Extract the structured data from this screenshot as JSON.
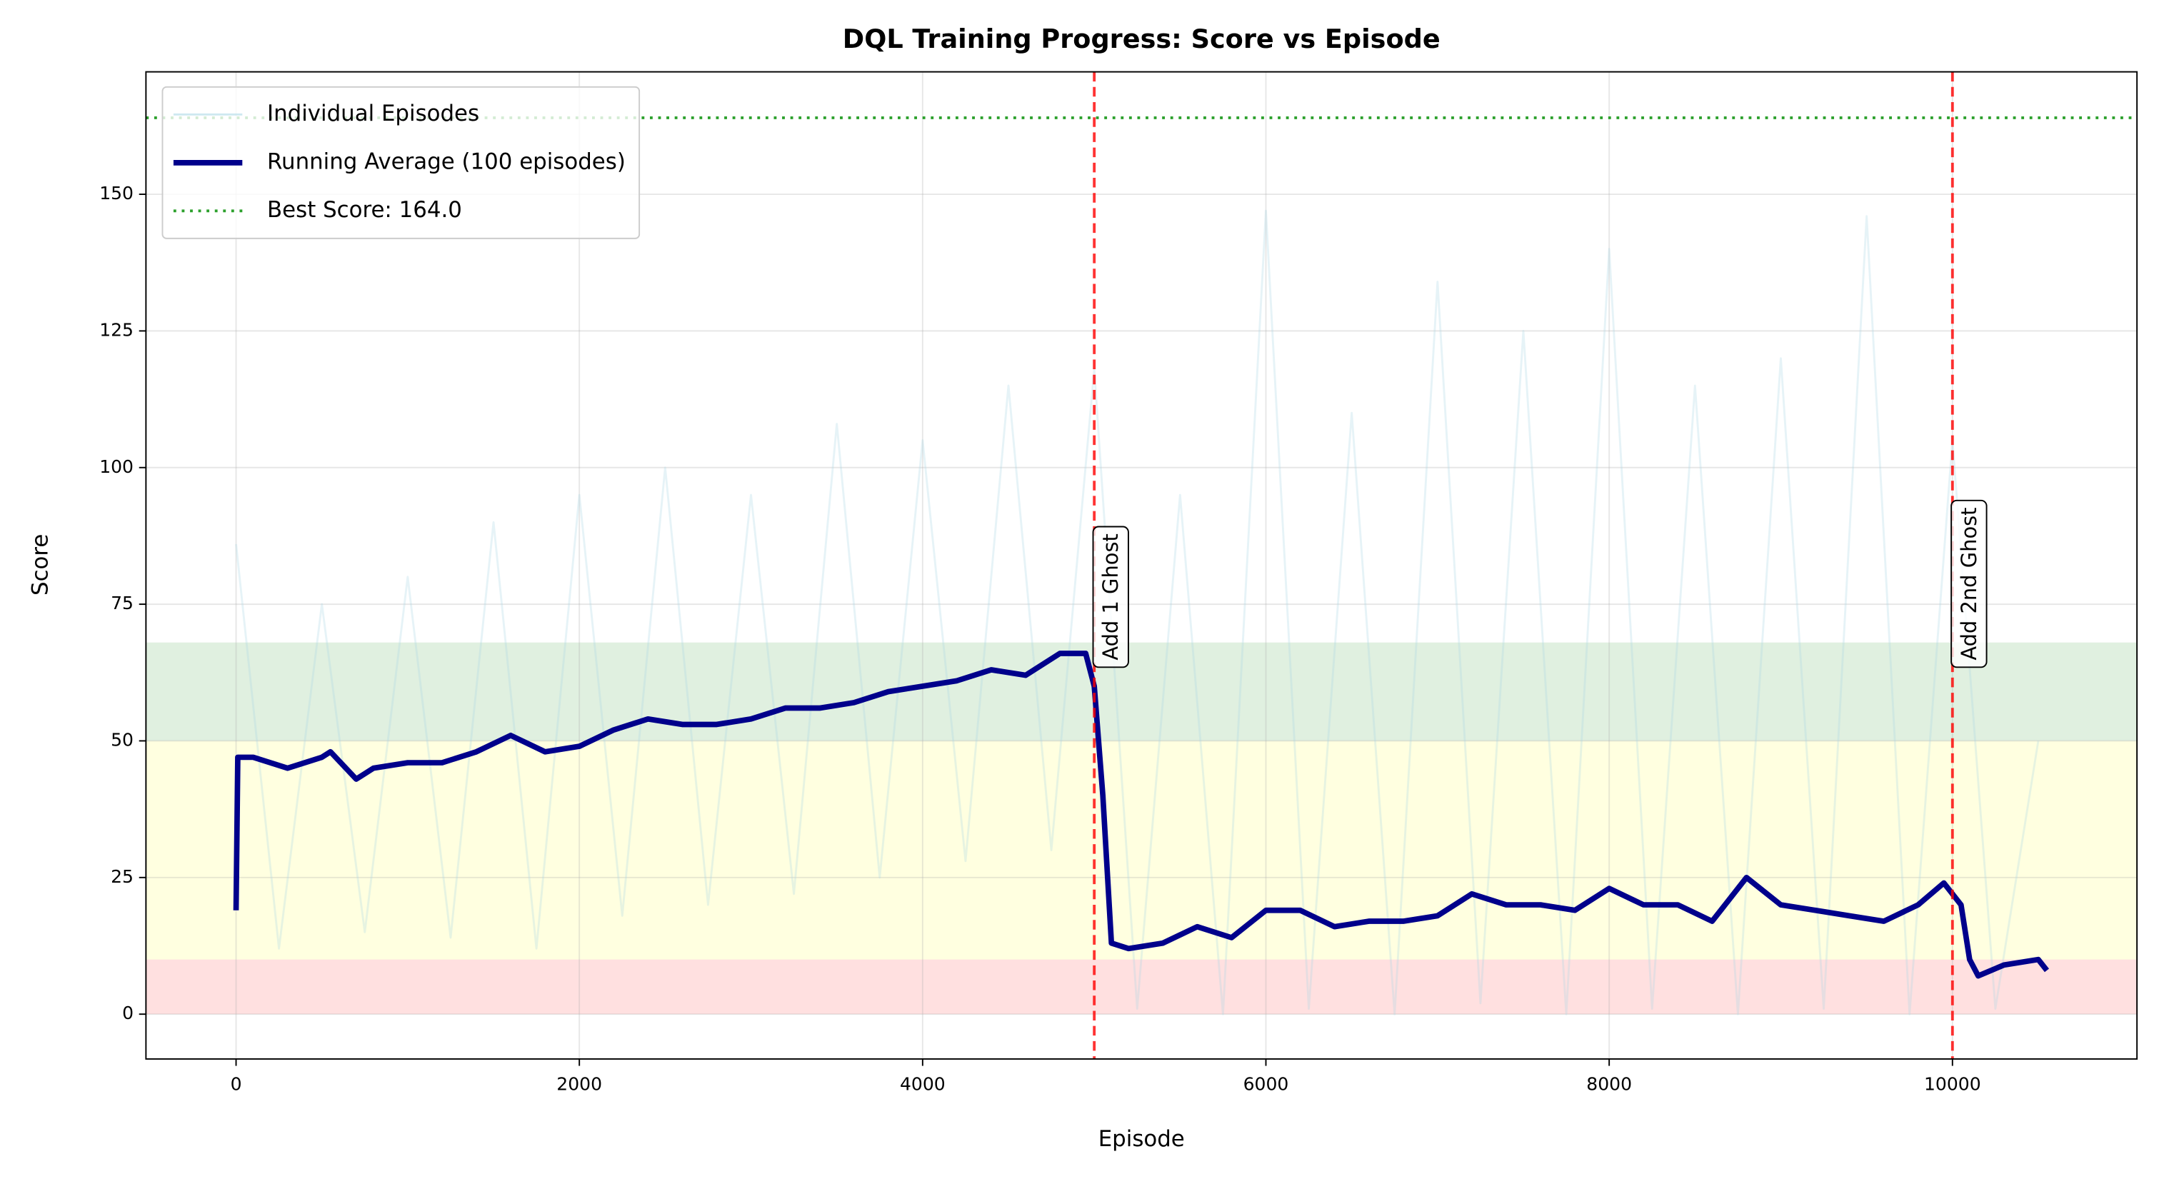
{
  "chart_data": {
    "type": "line",
    "title": "DQL Training Progress: Score vs Episode",
    "x_label": "Episode",
    "y_label": "Score",
    "xlim": [
      -525,
      11075
    ],
    "ylim": [
      -8.2,
      172.4
    ],
    "xticks": [
      0,
      2000,
      4000,
      6000,
      8000,
      10000
    ],
    "yticks": [
      0,
      25,
      50,
      75,
      100,
      125,
      150
    ],
    "grid": true,
    "legend": "upper left",
    "bands": [
      {
        "range": [
          0,
          10
        ],
        "color": "#ff0000"
      },
      {
        "range": [
          10,
          50
        ],
        "color": "#ffff00"
      },
      {
        "range": [
          50,
          68
        ],
        "color": "#008000"
      }
    ],
    "series": [
      {
        "name": "Individual Episodes",
        "color": "#add8e6",
        "style": "solid",
        "width": 1.5,
        "opacity": 0.3,
        "x": [
          0,
          250,
          500,
          750,
          1000,
          1250,
          1500,
          1750,
          2000,
          2250,
          2500,
          2750,
          3000,
          3250,
          3500,
          3750,
          4000,
          4250,
          4500,
          4750,
          5000,
          5250,
          5500,
          5750,
          6000,
          6250,
          6500,
          6750,
          7000,
          7250,
          7500,
          7750,
          8000,
          8250,
          8500,
          8750,
          9000,
          9250,
          9500,
          9750,
          10000,
          10250,
          10500
        ],
        "values": [
          86,
          12,
          75,
          15,
          80,
          14,
          90,
          12,
          95,
          18,
          100,
          20,
          95,
          22,
          108,
          25,
          105,
          28,
          115,
          30,
          118,
          1,
          95,
          0,
          147,
          1,
          110,
          0,
          134,
          2,
          125,
          0,
          140,
          1,
          115,
          0,
          120,
          1,
          146,
          0,
          105,
          1,
          50
        ]
      },
      {
        "name": "Running Average (100 episodes)",
        "color": "#00008b",
        "style": "solid",
        "width": 4,
        "opacity": 1,
        "x": [
          0,
          10,
          100,
          200,
          300,
          400,
          500,
          550,
          700,
          800,
          1000,
          1200,
          1400,
          1600,
          1800,
          2000,
          2200,
          2400,
          2600,
          2800,
          3000,
          3200,
          3400,
          3600,
          3800,
          4000,
          4200,
          4400,
          4600,
          4800,
          4950,
          5000,
          5050,
          5100,
          5200,
          5400,
          5600,
          5800,
          6000,
          6200,
          6400,
          6600,
          6800,
          7000,
          7200,
          7400,
          7600,
          7800,
          8000,
          8200,
          8400,
          8600,
          8800,
          9000,
          9200,
          9400,
          9600,
          9800,
          9950,
          10050,
          10100,
          10150,
          10300,
          10500,
          10550
        ],
        "values": [
          19,
          47,
          47,
          46,
          45,
          46,
          47,
          48,
          43,
          45,
          46,
          46,
          48,
          51,
          48,
          49,
          52,
          54,
          53,
          53,
          54,
          56,
          56,
          57,
          59,
          60,
          61,
          63,
          62,
          66,
          66,
          60,
          40,
          13,
          12,
          13,
          16,
          14,
          19,
          19,
          16,
          17,
          17,
          18,
          22,
          20,
          20,
          19,
          23,
          20,
          20,
          17,
          25,
          20,
          19,
          18,
          17,
          20,
          24,
          20,
          10,
          7,
          9,
          10,
          8
        ]
      }
    ],
    "hlines": [
      {
        "value": 164,
        "name": "Best Score: 164.0",
        "color": "#2ca02c",
        "style": "dotted"
      }
    ],
    "vlines": [
      {
        "value": 5000,
        "label": "Add 1 Ghost",
        "color": "#ff0000"
      },
      {
        "value": 10000,
        "label": "Add 2nd Ghost",
        "color": "#ff0000"
      }
    ]
  }
}
